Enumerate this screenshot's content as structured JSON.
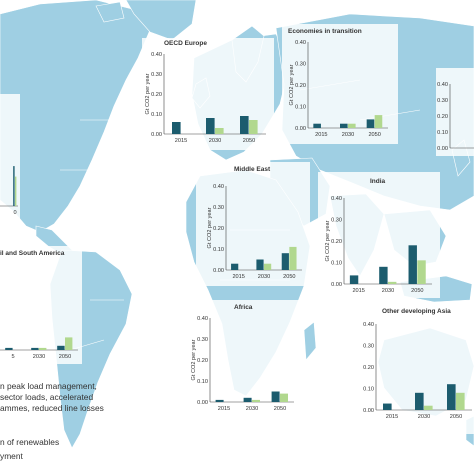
{
  "colors": {
    "ocean": "#ffffff",
    "land": "#9fcfe3",
    "land_dark": "#8cc3da",
    "border": "#ffffff",
    "bar_dark": "#1c5c6e",
    "bar_light": "#b1d88e",
    "axis": "#444444"
  },
  "chart_data": [
    {
      "type": "bar",
      "title": "OECD Europe",
      "ylabel": "Gt CO2 per year",
      "ylim": [
        0,
        0.4
      ],
      "yticks": [
        "0.40",
        "0.30",
        "0.20",
        "0.10",
        "0.00"
      ],
      "categories": [
        "2015",
        "2030",
        "2050"
      ],
      "series": [
        {
          "values": [
            0.06,
            0.08,
            0.09
          ]
        },
        {
          "values": [
            0.0,
            0.03,
            0.07
          ]
        }
      ]
    },
    {
      "type": "bar",
      "title": "Economies in transition",
      "ylabel": "Gt CO2 per year",
      "ylim": [
        0,
        0.4
      ],
      "yticks": [
        "0.40",
        "0.30",
        "0.20",
        "0.10",
        "0.00"
      ],
      "categories": [
        "2015",
        "2030",
        "2050"
      ],
      "series": [
        {
          "values": [
            0.02,
            0.02,
            0.04
          ]
        },
        {
          "values": [
            0.0,
            0.02,
            0.06
          ]
        }
      ]
    },
    {
      "type": "bar",
      "title": "",
      "ylabel": "",
      "ylim": [
        0,
        0.4
      ],
      "yticks": [
        "0.40",
        "0.30",
        "0.20",
        "0.10",
        "0.00"
      ],
      "categories": [],
      "series": []
    },
    {
      "type": "bar",
      "title": "Middle East",
      "ylabel": "Gt CO2 per year",
      "ylim": [
        0,
        0.4
      ],
      "yticks": [
        "0.40",
        "0.30",
        "0.20",
        "0.10",
        "0.00"
      ],
      "categories": [
        "2015",
        "2030",
        "2050"
      ],
      "series": [
        {
          "values": [
            0.03,
            0.05,
            0.08
          ]
        },
        {
          "values": [
            0.0,
            0.03,
            0.11
          ]
        }
      ]
    },
    {
      "type": "bar",
      "title": "India",
      "ylabel": "Gt CO2 per year",
      "ylim": [
        0,
        0.4
      ],
      "yticks": [
        "0.40",
        "0.30",
        "0.20",
        "0.10",
        "0.00"
      ],
      "categories": [
        "2015",
        "2030",
        "2050"
      ],
      "series": [
        {
          "values": [
            0.04,
            0.08,
            0.18
          ]
        },
        {
          "values": [
            0.0,
            0.01,
            0.11
          ]
        }
      ]
    },
    {
      "type": "bar",
      "title": "Africa",
      "ylabel": "Gt CO2 per year",
      "ylim": [
        0,
        0.4
      ],
      "yticks": [
        "0.40",
        "0.30",
        "0.20",
        "0.10",
        "0.00"
      ],
      "categories": [
        "2015",
        "2030",
        "2050"
      ],
      "series": [
        {
          "values": [
            0.01,
            0.02,
            0.05
          ]
        },
        {
          "values": [
            0.0,
            0.01,
            0.04
          ]
        }
      ]
    },
    {
      "type": "bar",
      "title": "Other developing Asia",
      "ylabel": "",
      "ylim": [
        0,
        0.4
      ],
      "yticks": [
        "0.40",
        "0.30",
        "0.20",
        "0.10",
        "0.00"
      ],
      "categories": [
        "2015",
        "2030",
        "2050"
      ],
      "series": [
        {
          "values": [
            0.03,
            0.08,
            0.12
          ]
        },
        {
          "values": [
            0.0,
            0.02,
            0.08
          ]
        }
      ]
    },
    {
      "type": "bar",
      "title": "il and South America",
      "ylabel": "",
      "ylim": [
        0,
        0.4
      ],
      "yticks": [],
      "categories": [
        "5",
        "2030",
        "2050"
      ],
      "series": [
        {
          "values": [
            0.01,
            0.01,
            0.02
          ]
        },
        {
          "values": [
            0.0,
            0.01,
            0.06
          ]
        }
      ]
    },
    {
      "type": "bar",
      "title": "",
      "ylabel": "",
      "ylim": [
        0,
        0.4
      ],
      "yticks": [],
      "categories": [
        "",
        "",
        "0"
      ],
      "series": [
        {
          "values": [
            0.0,
            0.0,
            0.19
          ]
        },
        {
          "values": [
            0.0,
            0.0,
            0.14
          ]
        }
      ]
    }
  ],
  "notes": {
    "line1": "n peak load management,",
    "line2": "sector loads, accelerated",
    "line3": "ammes, reduced line losses",
    "line4": "n of renewables",
    "line5": "yment"
  }
}
